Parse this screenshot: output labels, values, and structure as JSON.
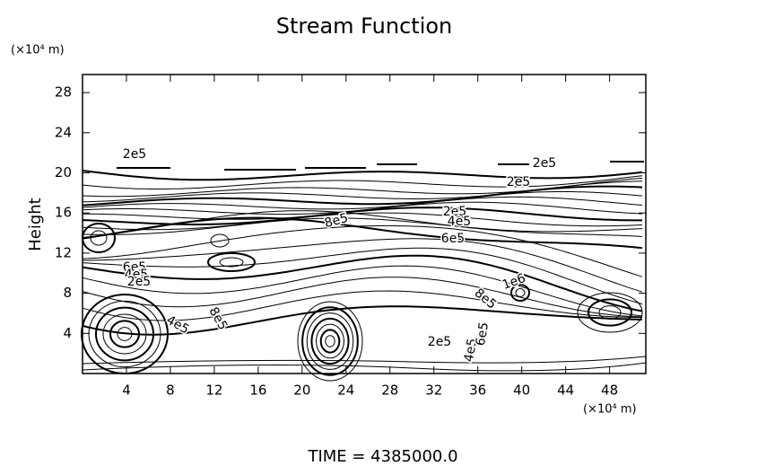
{
  "chart_data": {
    "type": "contour",
    "title": "Stream Function",
    "y_label": "Height",
    "y_unit": "(×10⁴ m)",
    "x_unit": "(×10⁴ m)",
    "footer": "TIME = 4385000.0",
    "xlim": [
      0,
      51.3
    ],
    "ylim": [
      0,
      29.8
    ],
    "xticks": [
      4,
      8,
      12,
      16,
      20,
      24,
      28,
      32,
      36,
      40,
      44,
      48
    ],
    "yticks": [
      4,
      8,
      12,
      16,
      20,
      24,
      28
    ],
    "contour_labels": [
      "2e5",
      "2e5",
      "2e5",
      "8e5",
      "2e5",
      "4e5",
      "6e5",
      "6e5",
      "4e5",
      "2e5",
      "1e6",
      "8e5",
      "4e5",
      "8e5",
      "2e5",
      "4e5",
      "6e5"
    ],
    "color": "#000000"
  }
}
